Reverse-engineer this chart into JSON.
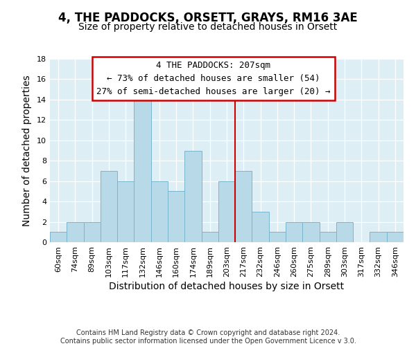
{
  "title": "4, THE PADDOCKS, ORSETT, GRAYS, RM16 3AE",
  "subtitle": "Size of property relative to detached houses in Orsett",
  "xlabel": "Distribution of detached houses by size in Orsett",
  "ylabel": "Number of detached properties",
  "bin_labels": [
    "60sqm",
    "74sqm",
    "89sqm",
    "103sqm",
    "117sqm",
    "132sqm",
    "146sqm",
    "160sqm",
    "174sqm",
    "189sqm",
    "203sqm",
    "217sqm",
    "232sqm",
    "246sqm",
    "260sqm",
    "275sqm",
    "289sqm",
    "303sqm",
    "317sqm",
    "332sqm",
    "346sqm"
  ],
  "bar_heights": [
    1,
    2,
    2,
    7,
    6,
    14,
    6,
    5,
    9,
    1,
    6,
    7,
    3,
    1,
    2,
    2,
    1,
    2,
    0,
    1,
    1
  ],
  "bar_color": "#b8d9e8",
  "bar_edge_color": "#7ab5ce",
  "vline_x_index": 10.5,
  "vline_color": "#cc0000",
  "annotation_text": "4 THE PADDOCKS: 207sqm\n← 73% of detached houses are smaller (54)\n27% of semi-detached houses are larger (20) →",
  "annotation_box_color": "#ffffff",
  "annotation_box_edge_color": "#cc0000",
  "footer_text": "Contains HM Land Registry data © Crown copyright and database right 2024.\nContains public sector information licensed under the Open Government Licence v 3.0.",
  "ylim": [
    0,
    18
  ],
  "yticks": [
    0,
    2,
    4,
    6,
    8,
    10,
    12,
    14,
    16,
    18
  ],
  "title_fontsize": 12,
  "subtitle_fontsize": 10,
  "axis_label_fontsize": 10,
  "tick_fontsize": 8,
  "annotation_fontsize": 9,
  "bg_color": "#ddeef5"
}
